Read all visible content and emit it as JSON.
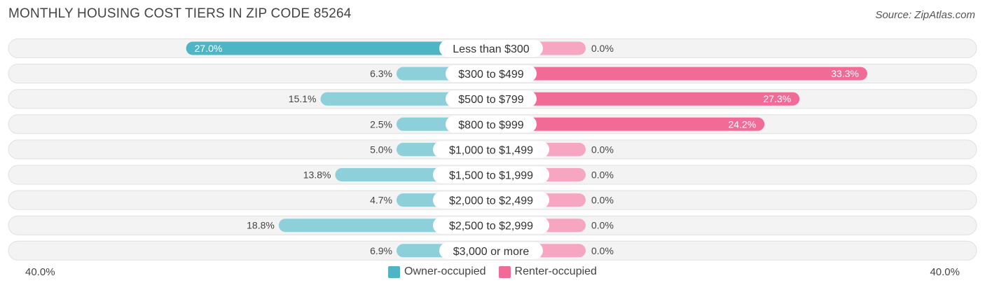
{
  "header": {
    "title": "MONTHLY HOUSING COST TIERS IN ZIP CODE 85264",
    "source": "Source: ZipAtlas.com"
  },
  "axis": {
    "left_label": "40.0%",
    "right_label": "40.0%"
  },
  "legend": [
    {
      "label": "Owner-occupied",
      "color": "#4db5c4"
    },
    {
      "label": "Renter-occupied",
      "color": "#f06c97"
    }
  ],
  "chart_data": {
    "type": "bar",
    "orientation": "horizontal-diverging",
    "title": "MONTHLY HOUSING COST TIERS IN ZIP CODE 85264",
    "xlim": [
      -40,
      40
    ],
    "categories": [
      "Less than $300",
      "$300 to $499",
      "$500 to $799",
      "$800 to $999",
      "$1,000 to $1,499",
      "$1,500 to $1,999",
      "$2,000 to $2,499",
      "$2,500 to $2,999",
      "$3,000 or more"
    ],
    "series": [
      {
        "name": "Owner-occupied",
        "color": "#4db5c4",
        "light_color": "#8dd0d9",
        "values": [
          27.0,
          6.3,
          15.1,
          2.5,
          5.0,
          13.8,
          4.7,
          18.8,
          6.9
        ]
      },
      {
        "name": "Renter-occupied",
        "color": "#f06c97",
        "light_color": "#f7a6c1",
        "values": [
          0.0,
          33.3,
          27.3,
          24.2,
          0.0,
          0.0,
          0.0,
          0.0,
          0.0
        ]
      }
    ],
    "value_labels": {
      "owner": [
        "27.0%",
        "6.3%",
        "15.1%",
        "2.5%",
        "5.0%",
        "13.8%",
        "4.7%",
        "18.8%",
        "6.9%"
      ],
      "renter": [
        "0.0%",
        "33.3%",
        "27.3%",
        "24.2%",
        "0.0%",
        "0.0%",
        "0.0%",
        "0.0%",
        "0.0%"
      ]
    }
  }
}
